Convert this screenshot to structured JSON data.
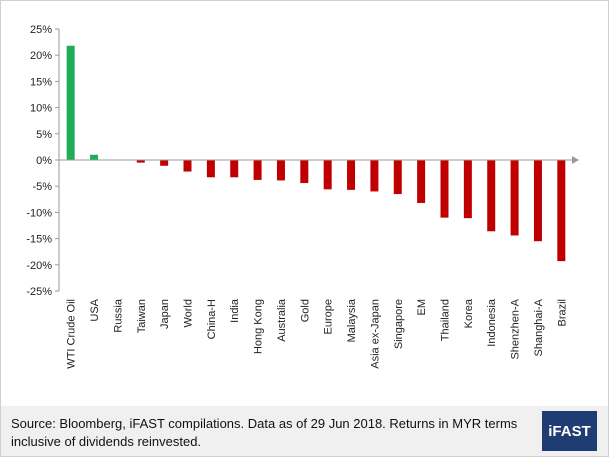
{
  "chart_data": {
    "type": "bar",
    "categories": [
      "WTI Crude Oil",
      "USA",
      "Russia",
      "Taiwan",
      "Japan",
      "World",
      "China-H",
      "India",
      "Hong Kong",
      "Australia",
      "Gold",
      "Europe",
      "Malaysia",
      "Asia ex-Japan",
      "Singapore",
      "EM",
      "Thailand",
      "Korea",
      "Indonesia",
      "Shenzhen-A",
      "Shanghai-A",
      "Brazil"
    ],
    "values": [
      21.8,
      1.0,
      0.0,
      -0.5,
      -1.1,
      -2.2,
      -3.3,
      -3.3,
      -3.8,
      -3.9,
      -4.4,
      -5.6,
      -5.7,
      -6.0,
      -6.5,
      -8.2,
      -11.0,
      -11.1,
      -13.6,
      -14.4,
      -15.5,
      -19.3
    ],
    "ylim": [
      -25,
      25
    ],
    "yticks": [
      "25%",
      "20%",
      "15%",
      "10%",
      "5%",
      "0%",
      "-5%",
      "-10%",
      "-15%",
      "-20%",
      "-25%"
    ],
    "colors": {
      "positive": "#1fae54",
      "negative": "#c00000",
      "axis": "#9a9a9a"
    },
    "grid": false,
    "title": "",
    "xlabel": "",
    "ylabel": ""
  },
  "footer": {
    "source": "Source: Bloomberg, iFAST compilations. Data as of 29 Jun 2018.  Returns in MYR terms inclusive of dividends reinvested.",
    "logo_text": "iFAST"
  }
}
